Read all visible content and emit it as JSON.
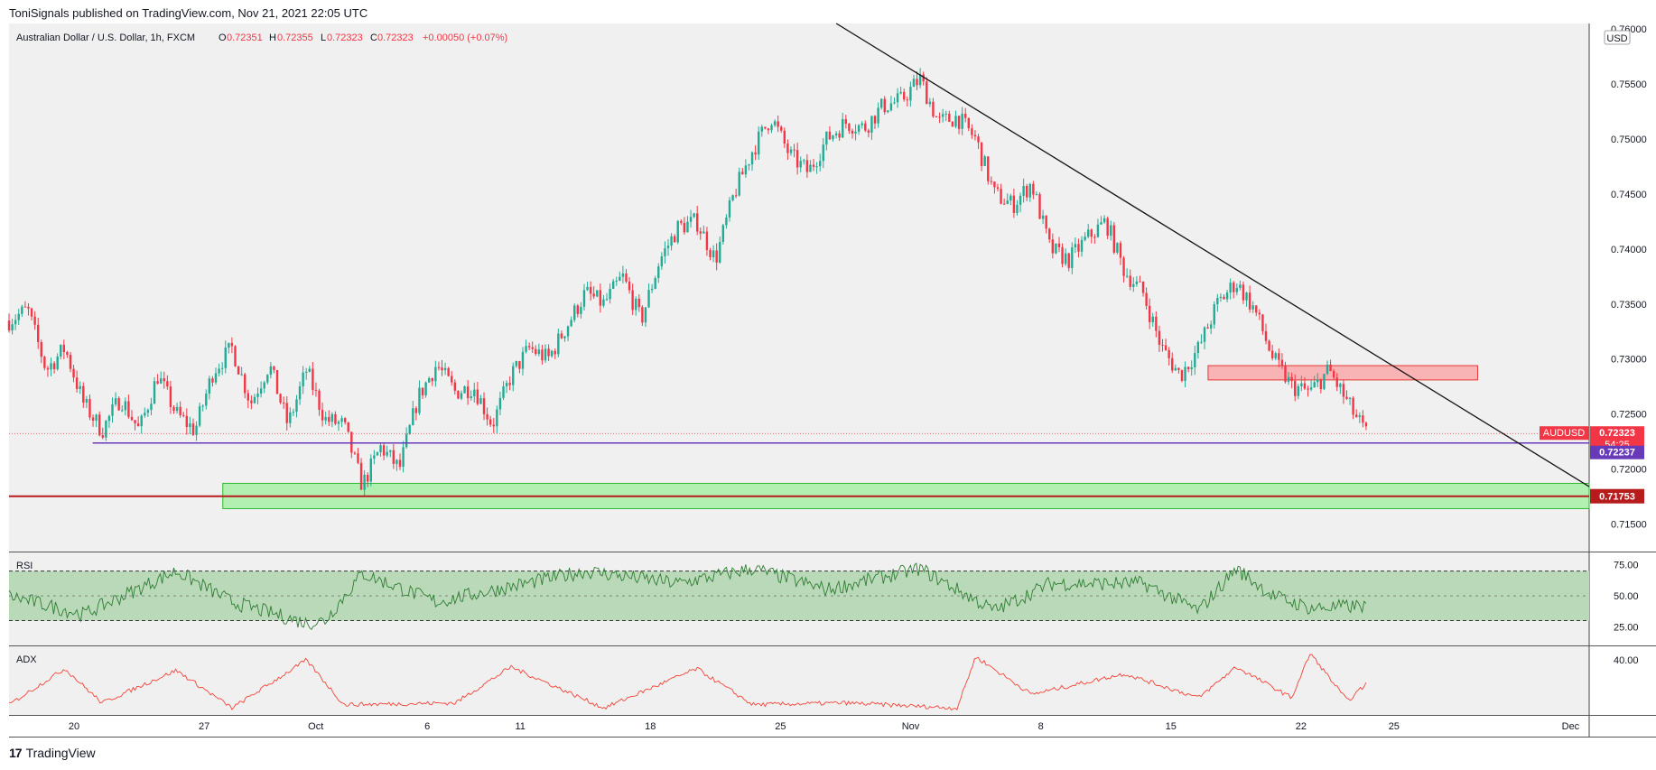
{
  "header": {
    "published": "ToniSignals published on TradingView.com, Nov 21, 2021 22:05 UTC"
  },
  "footer": {
    "logo_mark": "17",
    "logo_text": "TradingView"
  },
  "chart_data": [
    {
      "type": "candlestick",
      "title": "Australian Dollar / U.S. Dollar, 1h, FXCM",
      "ohlc_labels": {
        "o_key": "O",
        "o": "0.72351",
        "h_key": "H",
        "h": "0.72355",
        "l_key": "L",
        "l": "0.72323",
        "c_key": "C",
        "c": "0.72323",
        "change": "+0.00050 (+0.07%)"
      },
      "currency": "USD",
      "y_ticks": [
        "0.76000",
        "0.75500",
        "0.75000",
        "0.74500",
        "0.74000",
        "0.73500",
        "0.73000",
        "0.72500",
        "0.72000",
        "0.71500"
      ],
      "x_ticks": [
        "20",
        "27",
        "Oct",
        "6",
        "11",
        "18",
        "25",
        "Nov",
        "8",
        "15",
        "22",
        "25",
        "Dec"
      ],
      "ylim": [
        0.7125,
        0.7605
      ],
      "x_range_days": [
        0,
        85
      ],
      "anchors": [
        [
          0,
          0.7335
        ],
        [
          1,
          0.7345
        ],
        [
          2,
          0.729
        ],
        [
          3,
          0.731
        ],
        [
          4,
          0.726
        ],
        [
          5,
          0.7235
        ],
        [
          6,
          0.7265
        ],
        [
          7,
          0.7235
        ],
        [
          8,
          0.7285
        ],
        [
          9,
          0.725
        ],
        [
          10,
          0.7235
        ],
        [
          11,
          0.729
        ],
        [
          12,
          0.731
        ],
        [
          13,
          0.726
        ],
        [
          14,
          0.7295
        ],
        [
          15,
          0.724
        ],
        [
          16,
          0.729
        ],
        [
          17,
          0.7245
        ],
        [
          18,
          0.724
        ],
        [
          19,
          0.7185
        ],
        [
          20,
          0.722
        ],
        [
          21,
          0.72
        ],
        [
          22,
          0.7265
        ],
        [
          23,
          0.7295
        ],
        [
          24,
          0.727
        ],
        [
          25,
          0.7275
        ],
        [
          26,
          0.724
        ],
        [
          27,
          0.7285
        ],
        [
          28,
          0.731
        ],
        [
          29,
          0.73
        ],
        [
          30,
          0.733
        ],
        [
          31,
          0.736
        ],
        [
          32,
          0.735
        ],
        [
          33,
          0.7375
        ],
        [
          34,
          0.7335
        ],
        [
          35,
          0.739
        ],
        [
          36,
          0.742
        ],
        [
          37,
          0.7425
        ],
        [
          38,
          0.739
        ],
        [
          39,
          0.745
        ],
        [
          40,
          0.749
        ],
        [
          41,
          0.752
        ],
        [
          42,
          0.7485
        ],
        [
          43,
          0.747
        ],
        [
          44,
          0.75
        ],
        [
          45,
          0.7515
        ],
        [
          46,
          0.751
        ],
        [
          47,
          0.753
        ],
        [
          48,
          0.7535
        ],
        [
          49,
          0.7555
        ],
        [
          50,
          0.7515
        ],
        [
          51,
          0.752
        ],
        [
          52,
          0.75
        ],
        [
          53,
          0.745
        ],
        [
          54,
          0.744
        ],
        [
          55,
          0.746
        ],
        [
          56,
          0.74
        ],
        [
          57,
          0.739
        ],
        [
          58,
          0.741
        ],
        [
          59,
          0.7425
        ],
        [
          60,
          0.738
        ],
        [
          61,
          0.736
        ],
        [
          62,
          0.731
        ],
        [
          63,
          0.7285
        ],
        [
          64,
          0.731
        ],
        [
          65,
          0.735
        ],
        [
          66,
          0.737
        ],
        [
          67,
          0.7345
        ],
        [
          68,
          0.73
        ],
        [
          69,
          0.7275
        ],
        [
          70,
          0.727
        ],
        [
          71,
          0.729
        ],
        [
          72,
          0.726
        ],
        [
          73,
          0.7232
        ]
      ],
      "current_price": "0.72323",
      "countdown": "54:25",
      "symbol_tag": "AUDUSD",
      "support_level": "0.72237",
      "support_price": 0.72237,
      "key_level": "0.71753",
      "key_price": 0.71753,
      "resistance_zone": {
        "from_day": 64.5,
        "to_day": 79,
        "low": 0.7281,
        "high": 0.7294
      },
      "demand_zone": {
        "from_day": 11.5,
        "to_day": 85,
        "low": 0.7164,
        "high": 0.7187
      },
      "trendline": {
        "x1_day": 44.5,
        "y1": 0.7605,
        "x2_day": 85,
        "y2": 0.7184
      },
      "support_line_from_day": 4.5,
      "colors": {
        "up": "#22ab94",
        "down": "#f23645",
        "support": "#673ab7",
        "key": "#b71c1c",
        "zone_red": "#f8b4b4",
        "zone_green": "#b2f0b2"
      }
    },
    {
      "type": "line",
      "title": "RSI",
      "y_ticks": [
        "75.00",
        "50.00",
        "25.00"
      ],
      "ylim": [
        10,
        85
      ],
      "band": [
        30,
        70
      ],
      "anchors": [
        [
          0,
          50
        ],
        [
          4,
          35
        ],
        [
          9,
          70
        ],
        [
          12,
          45
        ],
        [
          16,
          28
        ],
        [
          17,
          30
        ],
        [
          19,
          68
        ],
        [
          23,
          45
        ],
        [
          31,
          70
        ],
        [
          36,
          60
        ],
        [
          40,
          72
        ],
        [
          44,
          55
        ],
        [
          49,
          72
        ],
        [
          53,
          38
        ],
        [
          56,
          60
        ],
        [
          61,
          60
        ],
        [
          64,
          38
        ],
        [
          66,
          72
        ],
        [
          68,
          50
        ],
        [
          70,
          40
        ],
        [
          73,
          42
        ]
      ],
      "color": "#2e7d32"
    },
    {
      "type": "line",
      "title": "ADX",
      "y_ticks": [
        "40.00"
      ],
      "ylim": [
        8,
        48
      ],
      "anchors": [
        [
          0,
          14
        ],
        [
          3,
          35
        ],
        [
          5,
          15
        ],
        [
          9,
          34
        ],
        [
          12,
          12
        ],
        [
          16,
          40
        ],
        [
          18,
          14
        ],
        [
          24,
          15
        ],
        [
          27,
          36
        ],
        [
          32,
          12
        ],
        [
          37,
          35
        ],
        [
          40,
          14
        ],
        [
          45,
          15
        ],
        [
          51,
          12
        ],
        [
          52,
          42
        ],
        [
          55,
          20
        ],
        [
          60,
          32
        ],
        [
          64,
          18
        ],
        [
          66,
          36
        ],
        [
          69,
          18
        ],
        [
          70,
          44
        ],
        [
          72,
          16
        ],
        [
          73,
          26
        ]
      ],
      "color": "#f44336"
    }
  ]
}
